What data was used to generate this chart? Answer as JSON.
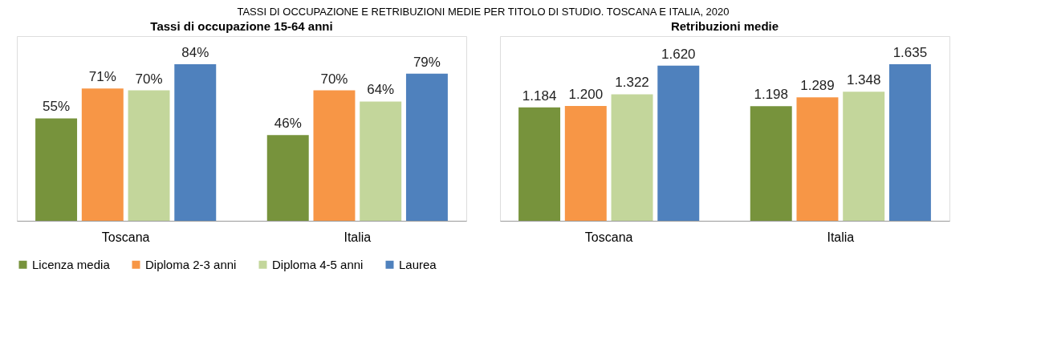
{
  "chart_data": [
    {
      "type": "bar",
      "title": "Tassi di occupazione 15-64 anni",
      "annotations": [
        "TASSI DI OCCUPAZIONE E RETRIBUZIONI MEDIE PER TITOLO DI STUDIO. TOSCANA E ITALIA, 2020"
      ],
      "categories": [
        "Toscana",
        "Italia"
      ],
      "legend": "bottom",
      "grid": false,
      "series": [
        {
          "name": "Licenza media",
          "color": "#77933c",
          "values": [
            55,
            46
          ],
          "value_labels": [
            "55%",
            "46%"
          ]
        },
        {
          "name": "Diploma 2-3 anni",
          "color": "#f79646",
          "values": [
            71,
            70
          ],
          "value_labels": [
            "71%",
            "70%"
          ]
        },
        {
          "name": "Diploma 4-5 anni",
          "color": "#c3d69b",
          "values": [
            70,
            64
          ],
          "value_labels": [
            "70%",
            "64%"
          ]
        },
        {
          "name": "Laurea",
          "color": "#4f81bd",
          "values": [
            84,
            79
          ],
          "value_labels": [
            "84%",
            "79%"
          ]
        }
      ]
    },
    {
      "type": "bar",
      "title": "Retribuzioni medie",
      "categories": [
        "Toscana",
        "Italia"
      ],
      "legend": "bottom",
      "grid": false,
      "series": [
        {
          "name": "Licenza media",
          "color": "#77933c",
          "values": [
            1184,
            1198
          ],
          "value_labels": [
            "1.184",
            "1.198"
          ]
        },
        {
          "name": "Diploma 2-3 anni",
          "color": "#f79646",
          "values": [
            1200,
            1289
          ],
          "value_labels": [
            "1.200",
            "1.289"
          ]
        },
        {
          "name": "Diploma 4-5 anni",
          "color": "#c3d69b",
          "values": [
            1322,
            1348
          ],
          "value_labels": [
            "1.322",
            "1.348"
          ]
        },
        {
          "name": "Laurea",
          "color": "#4f81bd",
          "values": [
            1620,
            1635
          ],
          "value_labels": [
            "1.620",
            "1.635"
          ]
        }
      ]
    }
  ]
}
